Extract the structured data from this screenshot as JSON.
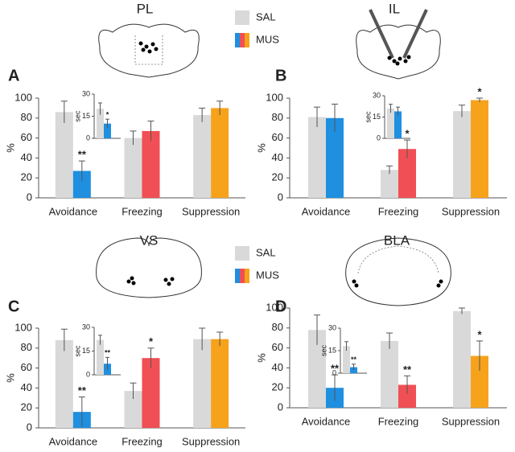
{
  "chart_data": [
    {
      "type": "bar",
      "panel": "A",
      "title": "PL",
      "ylabel": "%",
      "categories": [
        "Avoidance",
        "Freezing",
        "Suppression"
      ],
      "ylim": [
        0,
        100
      ],
      "yticks": [
        0,
        20,
        40,
        60,
        80,
        100
      ],
      "series": [
        {
          "name": "SAL",
          "colors": [
            "#d9d9d9",
            "#d9d9d9",
            "#d9d9d9"
          ],
          "values": [
            86,
            60,
            83
          ],
          "errors": [
            11,
            7,
            7
          ],
          "labels": [
            null,
            null,
            null
          ]
        },
        {
          "name": "MUS",
          "colors": [
            "#1f8fe0",
            "#f04f55",
            "#f7a21b"
          ],
          "values": [
            27,
            67,
            90
          ],
          "errors": [
            10,
            10,
            7
          ],
          "labels": [
            "**",
            null,
            null
          ]
        }
      ],
      "inset": {
        "ylabel": "sec",
        "ylim": [
          0,
          30
        ],
        "yticks": [
          0,
          15,
          30
        ],
        "series": [
          {
            "name": "SAL",
            "color": "#d9d9d9",
            "values": [
              20
            ],
            "errors": [
              4
            ],
            "labels": [
              null
            ]
          },
          {
            "name": "MUS",
            "color": "#1f8fe0",
            "values": [
              10
            ],
            "errors": [
              3
            ],
            "labels": [
              "*"
            ]
          }
        ]
      }
    },
    {
      "type": "bar",
      "panel": "B",
      "title": "IL",
      "ylabel": "%",
      "categories": [
        "Avoidance",
        "Freezing",
        "Suppression"
      ],
      "ylim": [
        0,
        100
      ],
      "yticks": [
        0,
        20,
        40,
        60,
        80,
        100
      ],
      "series": [
        {
          "name": "SAL",
          "colors": [
            "#d9d9d9",
            "#d9d9d9",
            "#d9d9d9"
          ],
          "values": [
            81,
            28,
            87
          ],
          "errors": [
            10,
            4,
            6
          ],
          "labels": [
            null,
            null,
            null
          ]
        },
        {
          "name": "MUS",
          "colors": [
            "#1f8fe0",
            "#f04f55",
            "#f7a21b"
          ],
          "values": [
            80,
            49,
            98
          ],
          "errors": [
            14,
            9,
            2
          ],
          "labels": [
            null,
            "*",
            "*"
          ]
        }
      ],
      "inset": {
        "ylabel": "sec",
        "ylim": [
          0,
          30
        ],
        "yticks": [
          0,
          15,
          30
        ],
        "series": [
          {
            "name": "SAL",
            "color": "#d9d9d9",
            "values": [
              21
            ],
            "errors": [
              3
            ],
            "labels": [
              null
            ]
          },
          {
            "name": "MUS",
            "color": "#1f8fe0",
            "values": [
              19
            ],
            "errors": [
              3
            ],
            "labels": [
              null
            ]
          }
        ]
      }
    },
    {
      "type": "bar",
      "panel": "C",
      "title": "VS",
      "ylabel": "%",
      "categories": [
        "Avoidance",
        "Freezing",
        "Suppression"
      ],
      "ylim": [
        0,
        100
      ],
      "yticks": [
        0,
        20,
        40,
        60,
        80,
        100
      ],
      "series": [
        {
          "name": "SAL",
          "colors": [
            "#d9d9d9",
            "#d9d9d9",
            "#d9d9d9"
          ],
          "values": [
            88,
            37,
            89
          ],
          "errors": [
            11,
            8,
            11
          ],
          "labels": [
            null,
            null,
            null
          ]
        },
        {
          "name": "MUS",
          "colors": [
            "#1f8fe0",
            "#f04f55",
            "#f7a21b"
          ],
          "values": [
            16,
            70,
            89
          ],
          "errors": [
            15,
            10,
            7
          ],
          "labels": [
            "**",
            "*",
            null
          ]
        }
      ],
      "inset": {
        "ylabel": "sec",
        "ylim": [
          0,
          30
        ],
        "yticks": [
          0,
          15,
          30
        ],
        "series": [
          {
            "name": "SAL",
            "color": "#d9d9d9",
            "values": [
              22
            ],
            "errors": [
              3
            ],
            "labels": [
              null
            ]
          },
          {
            "name": "MUS",
            "color": "#1f8fe0",
            "values": [
              7
            ],
            "errors": [
              4
            ],
            "labels": [
              "**"
            ]
          }
        ]
      }
    },
    {
      "type": "bar",
      "panel": "D",
      "title": "BLA",
      "ylabel": "%",
      "categories": [
        "Avoidance",
        "Freezing",
        "Suppression"
      ],
      "ylim": [
        0,
        100
      ],
      "yticks": [
        0,
        20,
        40,
        60,
        80,
        100
      ],
      "series": [
        {
          "name": "SAL",
          "colors": [
            "#d9d9d9",
            "#d9d9d9",
            "#d9d9d9"
          ],
          "values": [
            78,
            67,
            97
          ],
          "errors": [
            15,
            8,
            3
          ],
          "labels": [
            null,
            null,
            null
          ]
        },
        {
          "name": "MUS",
          "colors": [
            "#1f8fe0",
            "#f04f55",
            "#f7a21b"
          ],
          "values": [
            20,
            23,
            52
          ],
          "errors": [
            13,
            9,
            15
          ],
          "labels": [
            "**",
            "**",
            "*"
          ]
        }
      ],
      "inset": {
        "ylabel": "sec",
        "ylim": [
          0,
          30
        ],
        "yticks": [
          0,
          15,
          30
        ],
        "series": [
          {
            "name": "SAL",
            "color": "#d9d9d9",
            "values": [
              18
            ],
            "errors": [
              3
            ],
            "labels": [
              null
            ]
          },
          {
            "name": "MUS",
            "color": "#1f8fe0",
            "values": [
              4
            ],
            "errors": [
              2
            ],
            "labels": [
              "**"
            ]
          }
        ]
      }
    }
  ]
}
